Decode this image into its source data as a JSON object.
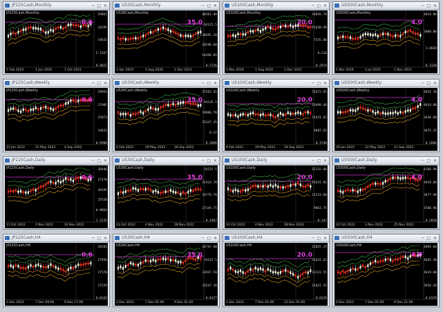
{
  "windows": [
    {
      "title": "JP225Cash,Monthly",
      "symbol": "JP225Cash,Monthly",
      "level": "0.6",
      "times": [
        "1 Feb 2019",
        "1 Jun 2020",
        "1 Oct 2021"
      ],
      "prices": [
        "29862",
        "24295",
        "19635",
        "5.1567",
        "8.6017"
      ],
      "seed": 1
    },
    {
      "title": "US30Cash,Monthly",
      "symbol": "US30Cash,Monthly",
      "level": "35.0",
      "times": [
        "1 Apr 2019",
        "1 Aug 2020",
        "1 Dec 2021"
      ],
      "prices": [
        "40361.86",
        "34115.5",
        "30495.10",
        "20290.60",
        "14496.85",
        "0.5726"
      ],
      "seed": 2
    },
    {
      "title": "US100Cash,Monthly",
      "symbol": "US100Cash,Monthly",
      "level": "20.0",
      "times": [
        "1 Mar 2019",
        "1 Aug 2020",
        "1 Dec 2021"
      ],
      "prices": [
        "19056.78",
        "11630.99",
        "7535.00",
        "8.216",
        "0.2974"
      ],
      "seed": 3
    },
    {
      "title": "US500Cash,Monthly",
      "symbol": "US500Cash,Monthly",
      "level": "4.0",
      "times": [
        "1 Mar 2019",
        "1 Jul 2020",
        "1 Nov 2021"
      ],
      "prices": [
        "4019.80",
        "2000.00",
        "3.0028",
        "0.3138"
      ],
      "seed": 4
    },
    {
      "title": "JP225Cash,Weekly",
      "symbol": "JP225Cash,Weekly",
      "level": "0.6",
      "times": [
        "23 Jan 2022",
        "15 May 2022",
        "4 Sep 2022"
      ],
      "prices": [
        "29663",
        "27905",
        "25873",
        "24033",
        "0.9908"
      ],
      "seed": 5
    },
    {
      "title": "US30Cash,Weekly",
      "symbol": "US30Cash,Weekly",
      "level": "35.0",
      "times": [
        "6 Feb 2022",
        "29 May 2022",
        "18 Sep 2022"
      ],
      "prices": [
        "37262.45",
        "34135.5",
        "29006.70",
        "25337.45",
        "0.22",
        "0.2886"
      ],
      "seed": 6
    },
    {
      "title": "US100Cash,Weekly",
      "symbol": "US100Cash,Weekly",
      "level": "20.0",
      "times": [
        "6 Feb 2022",
        "29 May 2022",
        "18 Sep 2022"
      ],
      "prices": [
        "15672.65",
        "13499.60",
        "11631.62",
        "9087.65",
        "0.3748"
      ],
      "seed": 7
    },
    {
      "title": "US500Cash,Weekly",
      "symbol": "US500Cash,Weekly",
      "level": "4.0",
      "times": [
        "30 Jan 2022",
        "22 May 2022",
        "11 Sep 2022"
      ],
      "prices": [
        "4831.10",
        "4019.80",
        "3644.60",
        "3075.35",
        "0.2866"
      ],
      "seed": 8
    },
    {
      "title": "JP225Cash,Daily",
      "symbol": "JP225Cash,Daily",
      "level": "0.6",
      "times": [
        "11 Oct 2022",
        "1 Nov 2022",
        "24 Nov 2022"
      ],
      "prices": [
        "28446",
        "27470",
        "26495",
        "25520",
        "0.0864",
        "1.2235"
      ],
      "seed": 9
    },
    {
      "title": "US30Cash,Daily",
      "symbol": "US30Cash,Daily",
      "level": "35.0",
      "times": [
        "13 Oct 2022",
        "4 Nov 2022",
        "28 Nov 2022"
      ],
      "prices": [
        "34115.5",
        "32414.70",
        "29779.70",
        "27144.75",
        "0.1667"
      ],
      "seed": 10
    },
    {
      "title": "US100Cash,Daily",
      "symbol": "US100Cash,Daily",
      "level": "20.0",
      "times": [
        "12 Oct 2022",
        "4 Nov 2022",
        "28 Nov 2022"
      ],
      "prices": [
        "12115.60",
        "11631.82",
        "11513.60",
        "9863.75",
        "0.147"
      ],
      "seed": 11
    },
    {
      "title": "US500Cash,Daily",
      "symbol": "US500Cash,Daily",
      "level": "4.0",
      "times": [
        "12 Oct 2022",
        "3 Nov 2022",
        "25 Nov 2022"
      ],
      "prices": [
        "4166.90",
        "4019.80",
        "3877.90",
        "3588.90",
        "0.2018"
      ],
      "seed": 12
    },
    {
      "title": "JP225Cash,H4",
      "symbol": "JP225Cash,H4",
      "level": "0.6",
      "times": [
        "2 Dec 2022",
        "7 Dec 09:00",
        "9 Dec 17:00"
      ],
      "prices": [
        "28282",
        "27930",
        "27578",
        "27229",
        "0.0343"
      ],
      "seed": 13
    },
    {
      "title": "US30Cash,H4",
      "symbol": "US30Cash,H4",
      "level": "35.0",
      "times": [
        "2 Dec 2022",
        "7 Dec 01:00",
        "9 Dec 01:00"
      ],
      "prices": [
        "34747.80",
        "34115.5",
        "33947.50",
        "33547.30",
        "0.0177"
      ],
      "seed": 14
    },
    {
      "title": "US100Cash,H4",
      "symbol": "US100Cash,H4",
      "level": "20.0",
      "times": [
        "1 Dec 2022",
        "7 Dec 01:00",
        "12 Dec 01:00"
      ],
      "prices": [
        "12025.15",
        "11631.62",
        "11121.55",
        "11021.55",
        "0.0229"
      ],
      "seed": 15
    },
    {
      "title": "US500Cash,H4",
      "symbol": "US500Cash,H4",
      "level": "4.0",
      "times": [
        "2 Dec 2022",
        "7 Dec 01:00",
        "9 Dec 21:00"
      ],
      "prices": [
        "4094.60",
        "4045.40",
        "4019.80",
        "3956.20",
        "0.0178"
      ],
      "seed": 16
    }
  ],
  "colors": {
    "bull": "#f0f0f0",
    "bear": "#e02020",
    "band_upper": "#3cb043",
    "band_mid": "#c8c820",
    "band_low": "#e0a020",
    "level_line": "#cc33cc",
    "ma": "#ff3030"
  }
}
